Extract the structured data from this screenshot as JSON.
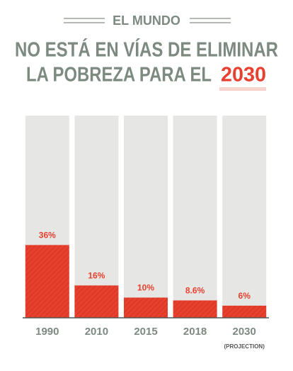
{
  "chart_data": {
    "type": "bar",
    "kicker": "EL MUNDO",
    "title_lines": [
      "NO ESTÁ EN VÍAS DE ELIMINAR",
      "LA POBREZA PARA EL"
    ],
    "title_highlight": "2030",
    "categories": [
      "1990",
      "2010",
      "2015",
      "2018",
      "2030"
    ],
    "values": [
      36,
      16,
      10,
      8.6,
      6
    ],
    "value_labels": [
      "36%",
      "16%",
      "10%",
      "8.6%",
      "6%"
    ],
    "annotation": "(PROJECTION)",
    "color": "#e8402e",
    "ylim": [
      0,
      100
    ]
  }
}
